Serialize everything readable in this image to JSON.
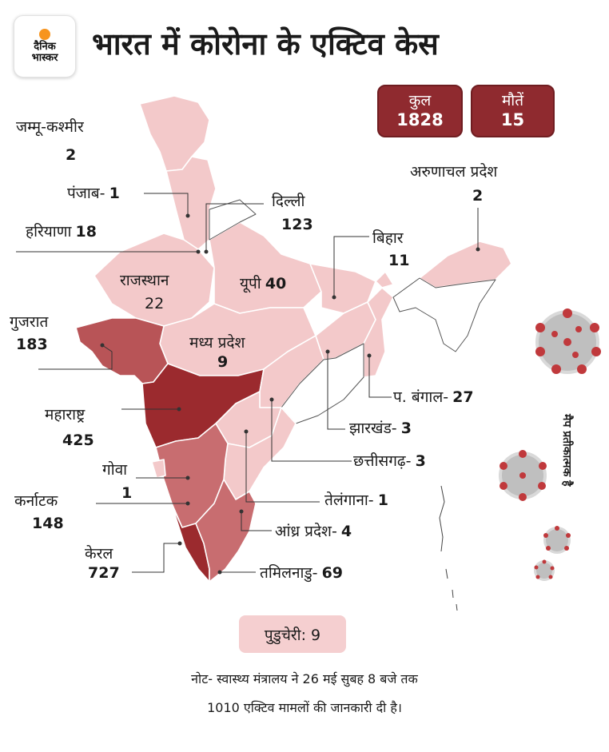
{
  "brand": {
    "line1": "दैनिक",
    "line2": "भास्कर"
  },
  "title": "भारत में कोरोना के एक्टिव केस",
  "stats": {
    "total": {
      "label": "कुल",
      "value": "1828"
    },
    "deaths": {
      "label": "मौतें",
      "value": "15"
    }
  },
  "states": {
    "jk": {
      "name": "जम्मू-कश्मीर",
      "count": "2"
    },
    "punjab": {
      "name": "पंजाब-",
      "count": "1"
    },
    "haryana": {
      "name": "हरियाणा",
      "count": "18"
    },
    "delhi": {
      "name": "दिल्ली",
      "count": "123"
    },
    "rajasthan": {
      "name": "राजस्थान",
      "count": "22"
    },
    "up": {
      "name": "यूपी",
      "count": "40"
    },
    "bihar": {
      "name": "बिहार",
      "count": "11"
    },
    "arunachal": {
      "name": "अरुणाचल प्रदेश",
      "count": "2"
    },
    "gujarat": {
      "name": "गुजरात",
      "count": "183"
    },
    "mp": {
      "name": "मध्य प्रदेश",
      "count": "9"
    },
    "wb": {
      "name": "प. बंगाल-",
      "count": "27"
    },
    "maharashtra": {
      "name": "महाराष्ट्र",
      "count": "425"
    },
    "jharkhand": {
      "name": "झारखंड-",
      "count": "3"
    },
    "goa": {
      "name": "गोवा",
      "count": "1"
    },
    "chhattisgarh": {
      "name": "छत्तीसगढ़-",
      "count": "3"
    },
    "karnataka": {
      "name": "कर्नाटक",
      "count": "148"
    },
    "telangana": {
      "name": "तेलंगाना-",
      "count": "1"
    },
    "ap": {
      "name": "आंध्र प्रदेश-",
      "count": "4"
    },
    "kerala": {
      "name": "केरल",
      "count": "727"
    },
    "tn": {
      "name": "तमिलनाडु-",
      "count": "69"
    }
  },
  "puducherry": "पुडुचेरी: 9",
  "side_note": "मैप प्रतीकात्मक है",
  "note": {
    "line1": "नोट- स्वास्थ्य मंत्रालय ने 26 मई सुबह 8 बजे तक",
    "line2": "1010 एक्टिव मामलों की जानकारी दी है।"
  },
  "colors": {
    "low": "#f3c9ca",
    "medium": "#c86d70",
    "medium_dark": "#b85457",
    "high": "#9b2a2e",
    "stat_box": "#8f2a2f",
    "virus": "#c0393c"
  },
  "icons": [
    "virus-icon"
  ]
}
